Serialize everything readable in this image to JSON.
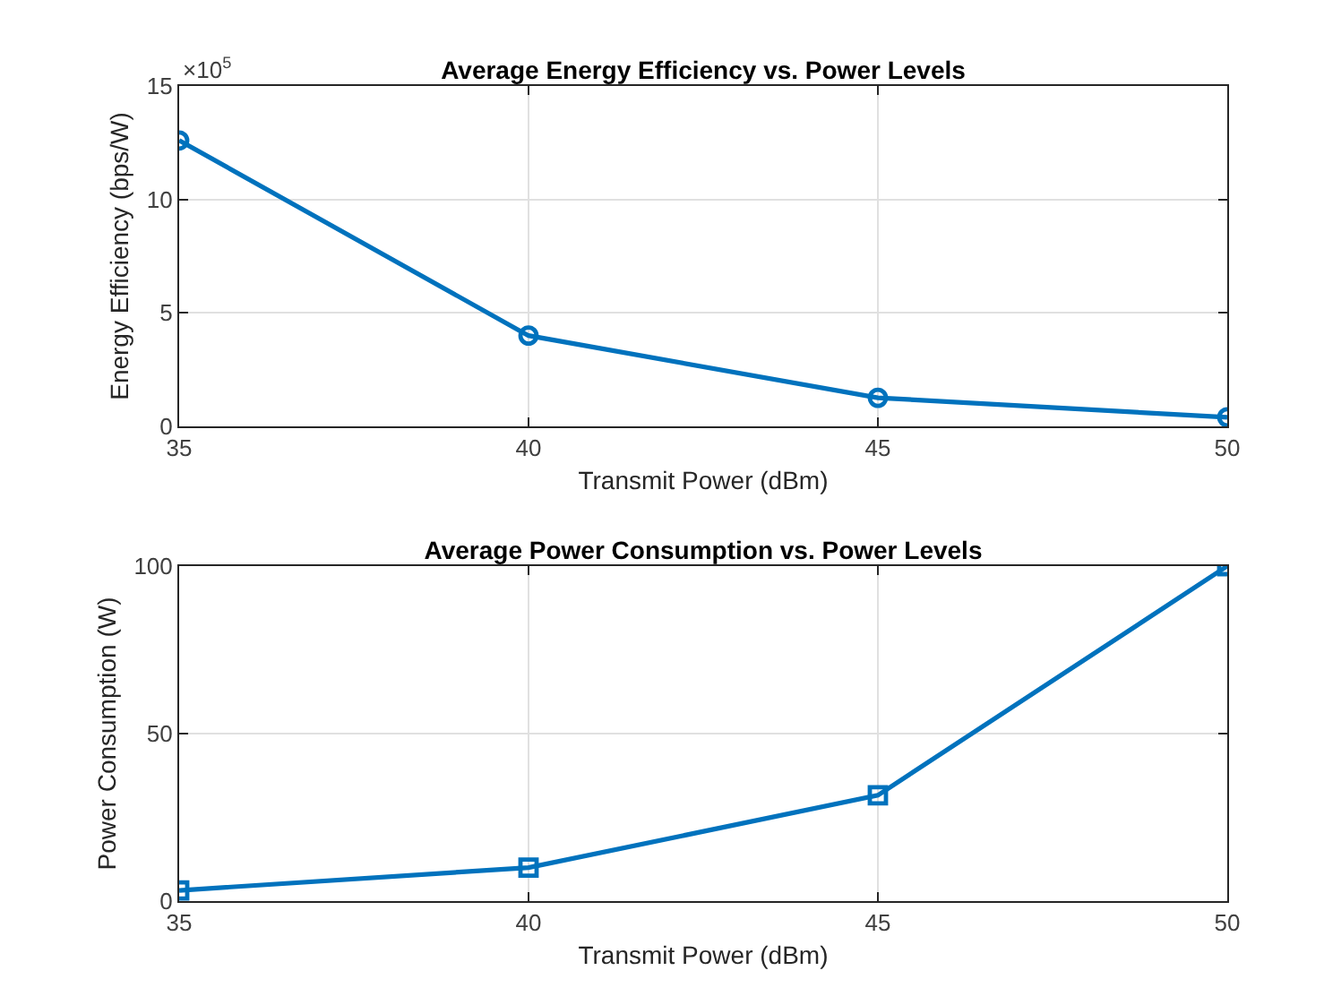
{
  "chart_data": [
    {
      "type": "line",
      "title": "Average Energy Efficiency vs. Power Levels",
      "xlabel": "Transmit Power (dBm)",
      "ylabel": "Energy Efficiency (bps/W)",
      "x": [
        35,
        40,
        45,
        50
      ],
      "series": [
        {
          "color": "#0072bd",
          "values": [
            12.6,
            4,
            1.26,
            0.4
          ]
        }
      ],
      "xlim": [
        35,
        50
      ],
      "xticks": [
        35,
        40,
        45,
        50
      ],
      "ylim": [
        0,
        15
      ],
      "yticks": [
        0,
        5,
        10,
        15
      ],
      "annotations": [
        "×10$^{5}$"
      ],
      "grid": true,
      "marker": "circle",
      "line_style": "solid"
    },
    {
      "type": "line",
      "title": "Average Power Consumption vs. Power Levels",
      "xlabel": "Transmit Power (dBm)",
      "ylabel": "Power Consumption (W)",
      "x": [
        35,
        40,
        45,
        50
      ],
      "series": [
        {
          "color": "#0072bd",
          "values": [
            3.2,
            10,
            31.6,
            100
          ]
        }
      ],
      "xlim": [
        35,
        50
      ],
      "xticks": [
        35,
        40,
        45,
        50
      ],
      "ylim": [
        0,
        100
      ],
      "yticks": [
        0,
        50,
        100
      ],
      "grid": true,
      "marker": "square",
      "line_style": "solid"
    }
  ]
}
